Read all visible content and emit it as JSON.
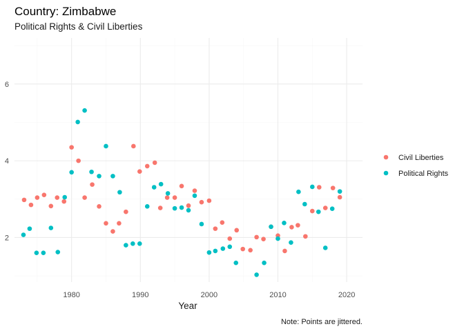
{
  "chart_data": {
    "type": "scatter",
    "title": "Country: Zimbabwe",
    "subtitle": "Political Rights & Civil Liberties",
    "xlabel": "Year",
    "ylabel": "",
    "caption": "Note: Points are jittered.",
    "xlim": [
      1971.7,
      2022.3
    ],
    "ylim": [
      0.84,
      7.2
    ],
    "x_ticks": [
      1980,
      1990,
      2000,
      2010,
      2020
    ],
    "x_minor_ticks": [
      1975,
      1985,
      1995,
      2005,
      2015
    ],
    "y_ticks": [
      2,
      4,
      6
    ],
    "y_minor_ticks": [
      1,
      3,
      5,
      7
    ],
    "grid": true,
    "legend_position": "right",
    "series": [
      {
        "name": "Civil Liberties",
        "color": "#F8766D",
        "points": [
          [
            1973.1,
            2.98
          ],
          [
            1974.1,
            2.85
          ],
          [
            1975.0,
            3.04
          ],
          [
            1976.0,
            3.11
          ],
          [
            1977.0,
            2.82
          ],
          [
            1977.9,
            3.04
          ],
          [
            1978.9,
            2.94
          ],
          [
            1980.0,
            4.35
          ],
          [
            1981.0,
            4.0
          ],
          [
            1981.9,
            3.04
          ],
          [
            1983.0,
            3.38
          ],
          [
            1984.0,
            2.81
          ],
          [
            1985.0,
            2.37
          ],
          [
            1986.0,
            2.16
          ],
          [
            1986.9,
            2.37
          ],
          [
            1987.9,
            2.67
          ],
          [
            1989.0,
            4.38
          ],
          [
            1989.9,
            3.72
          ],
          [
            1991.0,
            3.86
          ],
          [
            1992.1,
            3.95
          ],
          [
            1992.9,
            2.77
          ],
          [
            1993.9,
            3.04
          ],
          [
            1995.0,
            3.04
          ],
          [
            1996.0,
            3.34
          ],
          [
            1997.0,
            2.83
          ],
          [
            1997.9,
            3.22
          ],
          [
            1998.9,
            2.92
          ],
          [
            2000.0,
            2.96
          ],
          [
            2000.9,
            2.23
          ],
          [
            2001.9,
            2.39
          ],
          [
            2003.0,
            1.97
          ],
          [
            2004.0,
            2.19
          ],
          [
            2004.9,
            1.7
          ],
          [
            2006.0,
            1.67
          ],
          [
            2006.9,
            2.01
          ],
          [
            2007.9,
            1.96
          ],
          [
            2009.0,
            2.28
          ],
          [
            2010.0,
            2.05
          ],
          [
            2011.0,
            1.65
          ],
          [
            2012.0,
            2.27
          ],
          [
            2012.9,
            2.32
          ],
          [
            2014.0,
            2.03
          ],
          [
            2015.0,
            2.69
          ],
          [
            2016.0,
            3.31
          ],
          [
            2016.9,
            2.77
          ],
          [
            2018.0,
            3.29
          ],
          [
            2019.0,
            3.05
          ]
        ]
      },
      {
        "name": "Political Rights",
        "color": "#00BFC4",
        "points": [
          [
            1973.0,
            2.07
          ],
          [
            1973.9,
            2.23
          ],
          [
            1974.9,
            1.6
          ],
          [
            1975.9,
            1.6
          ],
          [
            1977.0,
            2.25
          ],
          [
            1978.0,
            1.62
          ],
          [
            1979.0,
            3.05
          ],
          [
            1980.0,
            3.7
          ],
          [
            1980.9,
            5.01
          ],
          [
            1981.9,
            5.31
          ],
          [
            1982.9,
            3.71
          ],
          [
            1984.0,
            3.6
          ],
          [
            1985.0,
            4.38
          ],
          [
            1986.0,
            3.6
          ],
          [
            1987.0,
            3.18
          ],
          [
            1987.9,
            1.8
          ],
          [
            1988.9,
            1.84
          ],
          [
            1989.9,
            1.84
          ],
          [
            1991.0,
            2.81
          ],
          [
            1992.0,
            3.31
          ],
          [
            1993.0,
            3.39
          ],
          [
            1994.0,
            3.15
          ],
          [
            1995.0,
            2.76
          ],
          [
            1996.0,
            2.78
          ],
          [
            1997.0,
            2.71
          ],
          [
            1997.9,
            3.09
          ],
          [
            1998.9,
            2.35
          ],
          [
            2000.0,
            1.61
          ],
          [
            2000.9,
            1.65
          ],
          [
            2002.0,
            1.71
          ],
          [
            2003.0,
            1.76
          ],
          [
            2003.9,
            1.34
          ],
          [
            2006.9,
            1.03
          ],
          [
            2008.0,
            1.34
          ],
          [
            2009.0,
            2.28
          ],
          [
            2010.0,
            1.97
          ],
          [
            2010.9,
            2.38
          ],
          [
            2011.9,
            1.87
          ],
          [
            2013.0,
            3.19
          ],
          [
            2013.9,
            2.87
          ],
          [
            2015.0,
            3.32
          ],
          [
            2015.9,
            2.67
          ],
          [
            2016.9,
            1.73
          ],
          [
            2017.9,
            2.75
          ],
          [
            2019.0,
            3.2
          ]
        ]
      }
    ]
  }
}
